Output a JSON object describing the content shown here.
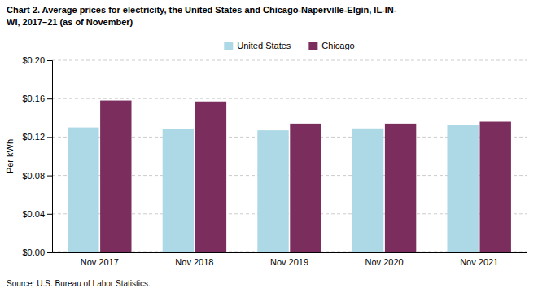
{
  "chart_data": {
    "type": "bar",
    "title": "Chart 2. Average prices for electricity, the United States and Chicago-Naperville-Elgin, IL-IN-\nWI, 2017–21 (as of November)",
    "ylabel": "Per kWh",
    "annotations": [
      "Source: U.S. Bureau of Labor Statistics."
    ],
    "categories": [
      "Nov 2017",
      "Nov 2018",
      "Nov 2019",
      "Nov 2020",
      "Nov 2021"
    ],
    "series": [
      {
        "name": "United States",
        "color": "#ADD8E6",
        "values": [
          0.13,
          0.128,
          0.127,
          0.129,
          0.133
        ]
      },
      {
        "name": "Chicago",
        "color": "#7B2D5E",
        "values": [
          0.158,
          0.157,
          0.134,
          0.134,
          0.136
        ]
      }
    ],
    "ylim": [
      0,
      0.2
    ],
    "yticks": [
      {
        "value": 0.0,
        "label": "$0.00"
      },
      {
        "value": 0.04,
        "label": "$0.04"
      },
      {
        "value": 0.08,
        "label": "$0.08"
      },
      {
        "value": 0.12,
        "label": "$0.12"
      },
      {
        "value": 0.16,
        "label": "$0.16"
      },
      {
        "value": 0.2,
        "label": "$0.20"
      }
    ],
    "grid": true,
    "legend": "top"
  }
}
